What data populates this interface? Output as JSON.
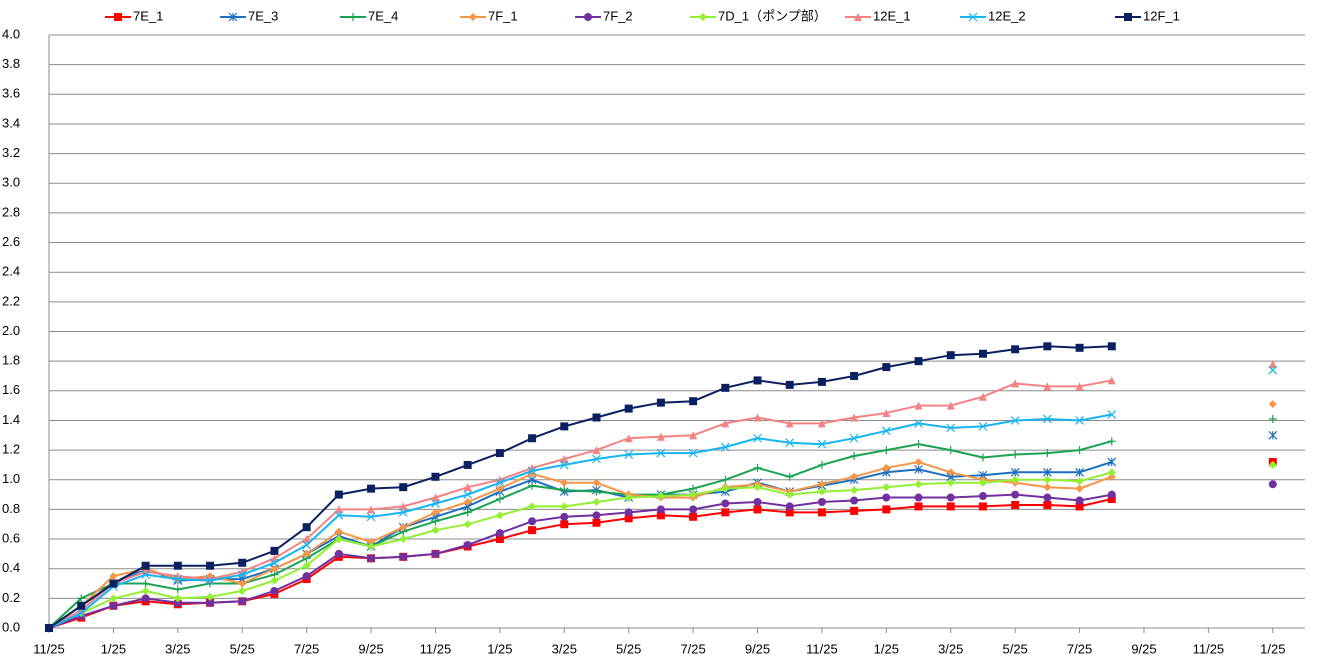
{
  "chart_data": {
    "type": "line",
    "categories": [
      "11/25",
      null,
      "1/25",
      null,
      "3/25",
      null,
      "5/25",
      null,
      "7/25",
      null,
      "9/25",
      null,
      "11/25",
      null,
      "1/25",
      null,
      "3/25",
      null,
      "5/25",
      null,
      "7/25",
      null,
      "9/25",
      null,
      "11/25",
      null,
      "1/25",
      null,
      "3/25",
      null,
      "5/25",
      null,
      "7/25",
      null,
      "9/25",
      null,
      "11/25",
      null,
      "1/25"
    ],
    "ylim": [
      0,
      4
    ],
    "yticks": [
      {
        "value": 0,
        "label": "0.0"
      },
      0.2,
      0.4,
      0.6,
      0.8,
      {
        "value": 1,
        "label": "1.0"
      },
      1.2,
      1.4,
      1.6,
      1.8,
      {
        "value": 2,
        "label": "2.0"
      },
      2.2,
      2.4,
      2.6,
      2.8,
      {
        "value": 3,
        "label": "3.0"
      },
      3.2,
      3.4,
      3.6,
      3.8,
      {
        "value": 4,
        "label": "4.0"
      }
    ],
    "grid": true,
    "legend": "top",
    "series": [
      {
        "name": "7E_1",
        "color": "#ff0000",
        "marker": "square",
        "values": [
          0,
          0.07,
          0.15,
          0.18,
          0.16,
          0.17,
          0.18,
          0.23,
          0.33,
          0.48,
          0.47,
          0.48,
          0.5,
          0.55,
          0.6,
          0.66,
          0.7,
          0.71,
          0.74,
          0.76,
          0.75,
          0.78,
          0.8,
          0.78,
          0.78,
          0.79,
          0.8,
          0.82,
          0.82,
          0.82,
          0.83,
          0.83,
          0.82,
          0.87,
          null,
          null,
          null,
          null,
          1.12
        ]
      },
      {
        "name": "7E_3",
        "color": "#1f6fc0",
        "marker": "star",
        "values": [
          0,
          0.15,
          0.3,
          0.4,
          0.32,
          0.33,
          0.33,
          0.4,
          0.5,
          0.62,
          0.55,
          0.68,
          0.75,
          0.82,
          0.92,
          1.0,
          0.92,
          0.93,
          0.88,
          0.9,
          0.9,
          0.92,
          0.98,
          0.92,
          0.96,
          1.0,
          1.05,
          1.07,
          1.02,
          1.03,
          1.05,
          1.05,
          1.05,
          1.12,
          null,
          null,
          null,
          null,
          1.3
        ]
      },
      {
        "name": "7E_4",
        "color": "#1aa350",
        "marker": "plus",
        "values": [
          0,
          0.2,
          0.3,
          0.3,
          0.26,
          0.3,
          0.3,
          0.36,
          0.47,
          0.6,
          0.55,
          0.65,
          0.72,
          0.78,
          0.87,
          0.96,
          0.93,
          0.92,
          0.9,
          0.9,
          0.94,
          1.0,
          1.08,
          1.02,
          1.1,
          1.16,
          1.2,
          1.24,
          1.2,
          1.15,
          1.17,
          1.18,
          1.2,
          1.26,
          null,
          null,
          null,
          null,
          1.41
        ]
      },
      {
        "name": "7F_1",
        "color": "#f79646",
        "marker": "diamond",
        "values": [
          0,
          0.15,
          0.35,
          0.4,
          0.33,
          0.35,
          0.3,
          0.4,
          0.5,
          0.65,
          0.58,
          0.68,
          0.78,
          0.85,
          0.94,
          1.04,
          0.98,
          0.98,
          0.9,
          0.88,
          0.88,
          0.95,
          0.97,
          0.92,
          0.97,
          1.02,
          1.08,
          1.12,
          1.05,
          1.0,
          0.98,
          0.95,
          0.94,
          1.02,
          null,
          null,
          null,
          null,
          1.51
        ]
      },
      {
        "name": "7F_2",
        "color": "#7030a0",
        "marker": "circle",
        "values": [
          0,
          0.08,
          0.15,
          0.2,
          0.17,
          0.17,
          0.18,
          0.25,
          0.35,
          0.5,
          0.47,
          0.48,
          0.5,
          0.56,
          0.64,
          0.72,
          0.75,
          0.76,
          0.78,
          0.8,
          0.8,
          0.84,
          0.85,
          0.82,
          0.85,
          0.86,
          0.88,
          0.88,
          0.88,
          0.89,
          0.9,
          0.88,
          0.86,
          0.9,
          null,
          null,
          null,
          null,
          0.97
        ]
      },
      {
        "name": "7D_1（ポンプ部）",
        "color": "#92f032",
        "marker": "diamond",
        "values": [
          0,
          0.1,
          0.2,
          0.25,
          0.2,
          0.21,
          0.25,
          0.32,
          0.42,
          0.6,
          0.55,
          0.6,
          0.66,
          0.7,
          0.76,
          0.82,
          0.82,
          0.85,
          0.88,
          0.89,
          0.9,
          0.94,
          0.95,
          0.9,
          0.92,
          0.93,
          0.95,
          0.97,
          0.98,
          0.98,
          1.0,
          1.0,
          0.99,
          1.05,
          null,
          null,
          null,
          null,
          1.1
        ]
      },
      {
        "name": "12E_1",
        "color": "#f58282",
        "marker": "triangle",
        "values": [
          0,
          0.12,
          0.3,
          0.38,
          0.35,
          0.33,
          0.38,
          0.47,
          0.6,
          0.8,
          0.8,
          0.82,
          0.88,
          0.95,
          1.0,
          1.08,
          1.14,
          1.2,
          1.28,
          1.29,
          1.3,
          1.38,
          1.42,
          1.38,
          1.38,
          1.42,
          1.45,
          1.5,
          1.5,
          1.56,
          1.65,
          1.63,
          1.63,
          1.67,
          null,
          null,
          null,
          null,
          1.78
        ]
      },
      {
        "name": "12E_2",
        "color": "#16b4f0",
        "marker": "x",
        "values": [
          0,
          0.1,
          0.28,
          0.36,
          0.33,
          0.32,
          0.36,
          0.44,
          0.56,
          0.76,
          0.75,
          0.78,
          0.84,
          0.9,
          0.98,
          1.06,
          1.1,
          1.14,
          1.17,
          1.18,
          1.18,
          1.22,
          1.28,
          1.25,
          1.24,
          1.28,
          1.33,
          1.38,
          1.35,
          1.36,
          1.4,
          1.41,
          1.4,
          1.44,
          null,
          null,
          null,
          null,
          1.74
        ]
      },
      {
        "name": "12F_1",
        "color": "#0b2060",
        "marker": "square",
        "values": [
          0,
          0.15,
          0.3,
          0.42,
          0.42,
          0.42,
          0.44,
          0.52,
          0.68,
          0.9,
          0.94,
          0.95,
          1.02,
          1.1,
          1.18,
          1.28,
          1.36,
          1.42,
          1.48,
          1.52,
          1.53,
          1.62,
          1.67,
          1.64,
          1.66,
          1.7,
          1.76,
          1.8,
          1.84,
          1.85,
          1.88,
          1.9,
          1.89,
          1.9,
          null,
          null,
          null,
          null,
          null
        ]
      }
    ]
  }
}
